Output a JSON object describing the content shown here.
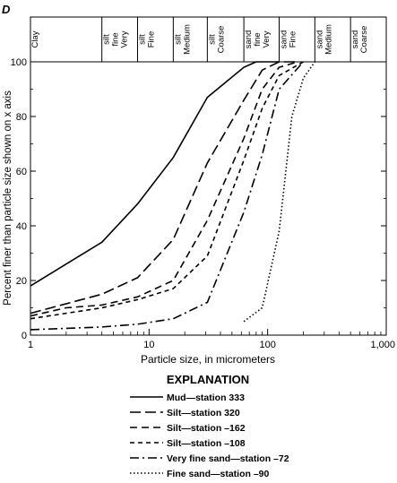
{
  "panel_label": "D",
  "chart_data": {
    "type": "line",
    "xscale": "log",
    "xlim": [
      1,
      1000
    ],
    "ylim": [
      0,
      100
    ],
    "xlabel": "Particle size, in micrometers",
    "ylabel": "Percent finer than particle size shown on x axis",
    "x_ticks": [
      1,
      10,
      100,
      1000
    ],
    "x_tick_labels": [
      "1",
      "10",
      "100",
      "1,000"
    ],
    "y_ticks": [
      0,
      20,
      40,
      60,
      80,
      100
    ],
    "y_tick_labels": [
      "0",
      "20",
      "40",
      "60",
      "80",
      "100"
    ],
    "size_classes": [
      {
        "label_lines": [
          "Clay"
        ],
        "from": 1,
        "to": 4
      },
      {
        "label_lines": [
          "Very",
          "fine",
          "silt"
        ],
        "from": 4,
        "to": 8
      },
      {
        "label_lines": [
          "Fine",
          "silt"
        ],
        "from": 8,
        "to": 16
      },
      {
        "label_lines": [
          "Medium",
          "silt"
        ],
        "from": 16,
        "to": 31
      },
      {
        "label_lines": [
          "Coarse",
          "silt"
        ],
        "from": 31,
        "to": 63
      },
      {
        "label_lines": [
          "Very",
          "fine",
          "sand"
        ],
        "from": 63,
        "to": 125
      },
      {
        "label_lines": [
          "Fine",
          "sand"
        ],
        "from": 125,
        "to": 250
      },
      {
        "label_lines": [
          "Medium",
          "sand"
        ],
        "from": 250,
        "to": 500
      },
      {
        "label_lines": [
          "Coarse",
          "sand"
        ],
        "from": 500,
        "to": 1000
      }
    ],
    "legend_title": "EXPLANATION",
    "series": [
      {
        "name": "Mud—station 333",
        "dash": "",
        "x": [
          1,
          2,
          4,
          8,
          16,
          31,
          63,
          80,
          125
        ],
        "y": [
          18,
          26,
          34,
          48,
          65,
          87,
          98,
          100,
          100
        ]
      },
      {
        "name": "Silt—station 320",
        "dash": "12,5",
        "x": [
          1,
          4,
          8,
          16,
          31,
          63,
          90,
          125,
          180
        ],
        "y": [
          8,
          15,
          21,
          35,
          63,
          86,
          97,
          100,
          100
        ]
      },
      {
        "name": "Silt—station –162",
        "dash": "8,5",
        "x": [
          1,
          2,
          4,
          8,
          16,
          31,
          63,
          90,
          125,
          180
        ],
        "y": [
          7,
          10,
          11,
          14,
          20,
          42,
          72,
          90,
          98,
          100
        ]
      },
      {
        "name": "Silt—station –108",
        "dash": "5,4",
        "x": [
          1,
          4,
          8,
          16,
          31,
          63,
          90,
          125,
          200
        ],
        "y": [
          6,
          10,
          13,
          17,
          29,
          64,
          83,
          95,
          100
        ]
      },
      {
        "name": "Very fine sand—station –72",
        "dash": "10,4,2,4",
        "x": [
          1,
          4,
          8,
          16,
          31,
          63,
          90,
          125,
          200
        ],
        "y": [
          2,
          3,
          4,
          6,
          12,
          45,
          66,
          90,
          100
        ]
      },
      {
        "name": "Fine sand—station –90",
        "dash": "1.5,2.5",
        "x": [
          63,
          90,
          125,
          160,
          200,
          250
        ],
        "y": [
          5,
          10,
          38,
          80,
          94,
          100
        ]
      }
    ]
  }
}
